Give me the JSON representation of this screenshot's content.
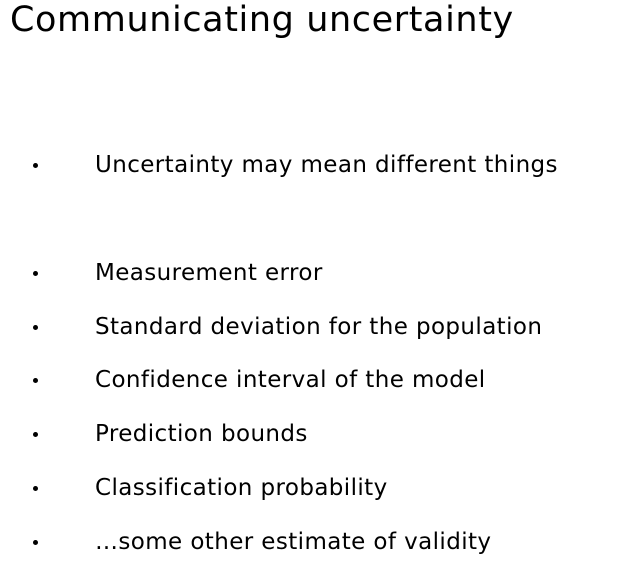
{
  "slide": {
    "title": "Communicating uncertainty",
    "bullets": [
      {
        "text": "Uncertainty may mean different things"
      },
      {
        "text": "Measurement error"
      },
      {
        "text": "Standard deviation for the population"
      },
      {
        "text": "Confidence interval of the model"
      },
      {
        "text": "Prediction bounds"
      },
      {
        "text": "Classification probability"
      },
      {
        "text": "…some other estimate of validity"
      }
    ]
  }
}
